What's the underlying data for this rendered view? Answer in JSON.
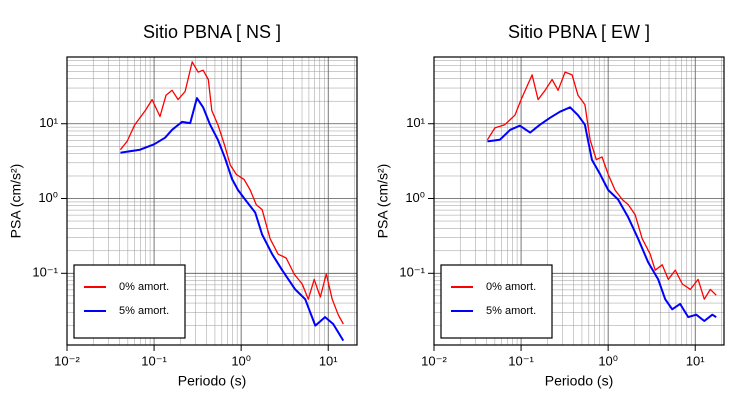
{
  "chart_data": [
    {
      "type": "line",
      "title": "Sitio PBNA [ NS ]",
      "x_label": "Periodo (s)",
      "y_label": "PSA (cm/s²)",
      "log_x": true,
      "log_y": true,
      "grid": true,
      "legend": "lower left",
      "xlim": [
        0.01,
        21.4
      ],
      "ylim": [
        0.011,
        78
      ],
      "xticks": [
        {
          "value": 0.01,
          "label": "10⁻²"
        },
        {
          "value": 0.1,
          "label": "10⁻¹"
        },
        {
          "value": 1,
          "label": "10⁰"
        },
        {
          "value": 10,
          "label": "10¹"
        }
      ],
      "yticks": [
        {
          "value": 0.1,
          "label": "10⁻¹"
        },
        {
          "value": 1,
          "label": "10⁰"
        },
        {
          "value": 10,
          "label": "10¹"
        }
      ],
      "series": [
        {
          "name": "0% amort.",
          "color": "#ff0000",
          "x": [
            0.041,
            0.049,
            0.06,
            0.079,
            0.095,
            0.117,
            0.137,
            0.161,
            0.189,
            0.227,
            0.274,
            0.32,
            0.366,
            0.42,
            0.46,
            0.54,
            0.64,
            0.75,
            0.88,
            1.08,
            1.27,
            1.49,
            1.74,
            2.15,
            2.66,
            3.29,
            4.06,
            5.03,
            5.9,
            6.9,
            8.1,
            9.5,
            11.1,
            13.0,
            14.9
          ],
          "values": [
            4.5,
            5.8,
            9.7,
            15,
            21,
            12.5,
            24,
            28,
            21,
            27,
            67,
            49,
            52,
            39,
            15,
            9.7,
            5.3,
            2.8,
            2.1,
            1.8,
            1.3,
            0.83,
            0.71,
            0.29,
            0.18,
            0.16,
            0.098,
            0.072,
            0.045,
            0.083,
            0.048,
            0.098,
            0.045,
            0.028,
            0.021
          ]
        },
        {
          "name": "5% amort.",
          "color": "#0000ff",
          "x": [
            0.041,
            0.069,
            0.1,
            0.134,
            0.161,
            0.21,
            0.26,
            0.31,
            0.366,
            0.44,
            0.54,
            0.65,
            0.79,
            0.92,
            1.11,
            1.45,
            1.74,
            2.27,
            2.96,
            4.18,
            5.44,
            7.1,
            9.2,
            11.4,
            14.9
          ],
          "values": [
            4.1,
            4.5,
            5.3,
            6.5,
            8.3,
            10.6,
            10.2,
            22,
            16.6,
            9.7,
            6.1,
            3.5,
            1.8,
            1.3,
            0.97,
            0.65,
            0.33,
            0.18,
            0.11,
            0.061,
            0.045,
            0.02,
            0.026,
            0.021,
            0.0126
          ]
        }
      ]
    },
    {
      "type": "line",
      "title": "Sitio PBNA [ EW ]",
      "x_label": "Periodo (s)",
      "y_label": "PSA (cm/s²)",
      "log_x": true,
      "log_y": true,
      "grid": true,
      "legend": "lower left",
      "xlim": [
        0.01,
        21.4
      ],
      "ylim": [
        0.011,
        78
      ],
      "xticks": [
        {
          "value": 0.01,
          "label": "10⁻²"
        },
        {
          "value": 0.1,
          "label": "10⁻¹"
        },
        {
          "value": 1,
          "label": "10⁰"
        },
        {
          "value": 10,
          "label": "10¹"
        }
      ],
      "yticks": [
        {
          "value": 0.1,
          "label": "10⁻¹"
        },
        {
          "value": 1,
          "label": "10⁰"
        },
        {
          "value": 10,
          "label": "10¹"
        }
      ],
      "series": [
        {
          "name": "0% amort.",
          "color": "#ff0000",
          "x": [
            0.041,
            0.05,
            0.065,
            0.085,
            0.1,
            0.134,
            0.157,
            0.189,
            0.227,
            0.266,
            0.32,
            0.385,
            0.45,
            0.54,
            0.62,
            0.73,
            0.85,
            1.0,
            1.2,
            1.45,
            1.7,
            2.04,
            2.46,
            3.04,
            3.47,
            4.18,
            4.9,
            5.9,
            7.1,
            8.8,
            10.8,
            12.7,
            14.9,
            17.4
          ],
          "values": [
            6.1,
            8.8,
            9.7,
            13,
            21,
            45,
            21,
            28,
            39,
            28,
            49,
            45,
            24,
            18,
            6.1,
            3.3,
            3.6,
            2.1,
            1.3,
            0.97,
            0.83,
            0.61,
            0.29,
            0.18,
            0.11,
            0.13,
            0.083,
            0.11,
            0.072,
            0.061,
            0.083,
            0.045,
            0.061,
            0.051
          ]
        },
        {
          "name": "5% amort.",
          "color": "#0000ff",
          "x": [
            0.041,
            0.057,
            0.075,
            0.097,
            0.127,
            0.165,
            0.215,
            0.28,
            0.366,
            0.45,
            0.54,
            0.65,
            0.81,
            1.0,
            1.3,
            1.7,
            2.21,
            2.88,
            3.76,
            4.52,
            5.44,
            6.7,
            8.3,
            10.3,
            12.7,
            15.7,
            17.4
          ],
          "values": [
            5.8,
            6.1,
            8.3,
            9.4,
            7.6,
            9.7,
            12,
            14.5,
            16.6,
            13,
            9.7,
            3.3,
            2.1,
            1.3,
            0.97,
            0.56,
            0.29,
            0.14,
            0.083,
            0.045,
            0.033,
            0.039,
            0.026,
            0.028,
            0.023,
            0.028,
            0.026
          ]
        }
      ]
    }
  ]
}
